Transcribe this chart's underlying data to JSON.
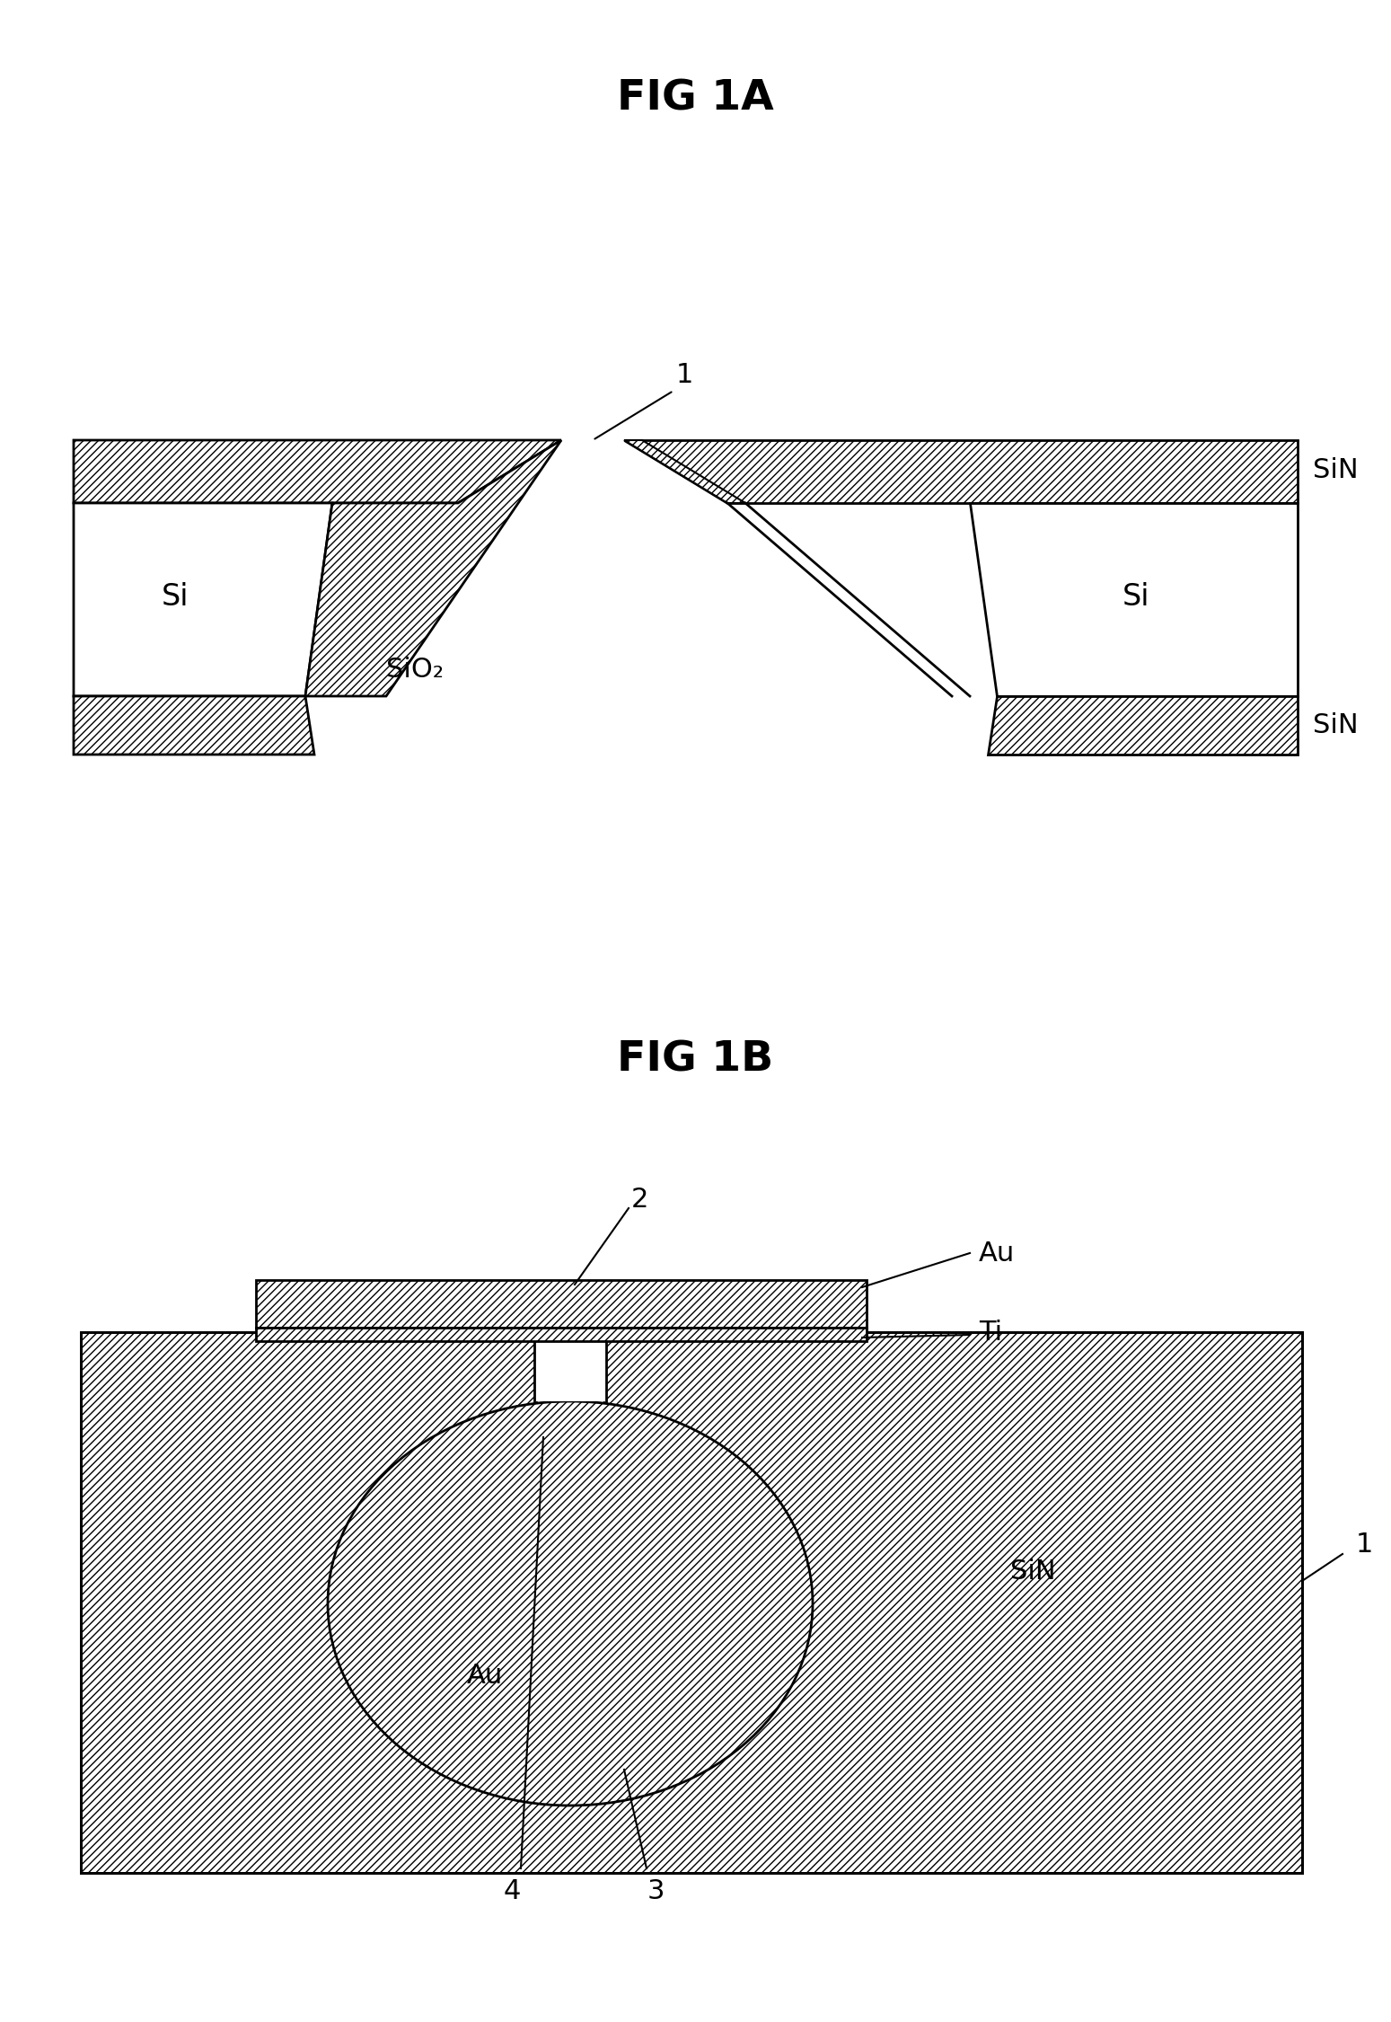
{
  "fig_title_1a": "FIG 1A",
  "fig_title_1b": "FIG 1B",
  "label_si_left": "Si",
  "label_si_right": "Si",
  "label_sio2": "SiO₂",
  "label_sin_top_right": "SiN",
  "label_sin_bot_right": "SiN",
  "label_1_1a": "1",
  "label_2_1b": "2",
  "label_au_top": "Au",
  "label_ti": "Ti",
  "label_au_ball": "Au",
  "label_sin_1b": "SiN",
  "label_1_1b": "1",
  "label_3": "3",
  "label_4": "4",
  "font_size_title": 34,
  "font_size_label": 20,
  "font_size_number": 20
}
